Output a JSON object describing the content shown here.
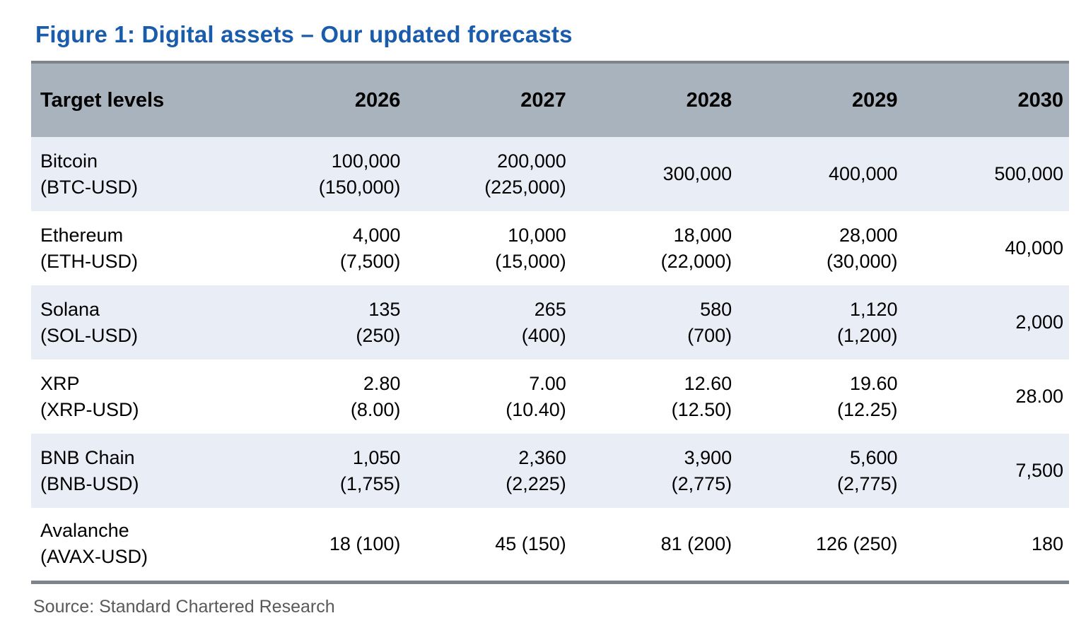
{
  "figure": {
    "title": "Figure 1: Digital assets – Our updated forecasts",
    "source": "Source: Standard Chartered Research"
  },
  "table": {
    "header": [
      "Target levels",
      "2026",
      "2027",
      "2028",
      "2029",
      "2030"
    ],
    "rows": [
      {
        "name": "Bitcoin",
        "ticker": "(BTC-USD)",
        "cells": [
          {
            "main": "100,000",
            "secondary": "(150,000)"
          },
          {
            "main": "200,000",
            "secondary": "(225,000)"
          },
          {
            "main": "300,000",
            "secondary": ""
          },
          {
            "main": "400,000",
            "secondary": ""
          },
          {
            "main": "500,000",
            "secondary": ""
          }
        ]
      },
      {
        "name": "Ethereum",
        "ticker": "(ETH-USD)",
        "cells": [
          {
            "main": "4,000",
            "secondary": "(7,500)"
          },
          {
            "main": "10,000",
            "secondary": "(15,000)"
          },
          {
            "main": "18,000",
            "secondary": "(22,000)"
          },
          {
            "main": "28,000",
            "secondary": "(30,000)"
          },
          {
            "main": "40,000",
            "secondary": ""
          }
        ]
      },
      {
        "name": "Solana",
        "ticker": "(SOL-USD)",
        "cells": [
          {
            "main": "135",
            "secondary": "(250)"
          },
          {
            "main": "265",
            "secondary": "(400)"
          },
          {
            "main": "580",
            "secondary": "(700)"
          },
          {
            "main": "1,120",
            "secondary": "(1,200)"
          },
          {
            "main": "2,000",
            "secondary": ""
          }
        ]
      },
      {
        "name": "XRP",
        "ticker": "(XRP-USD)",
        "cells": [
          {
            "main": "2.80",
            "secondary": "(8.00)"
          },
          {
            "main": "7.00",
            "secondary": "(10.40)"
          },
          {
            "main": "12.60",
            "secondary": "(12.50)"
          },
          {
            "main": "19.60",
            "secondary": "(12.25)"
          },
          {
            "main": "28.00",
            "secondary": ""
          }
        ]
      },
      {
        "name": "BNB Chain",
        "ticker": "(BNB-USD)",
        "cells": [
          {
            "main": "1,050",
            "secondary": "(1,755)"
          },
          {
            "main": "2,360",
            "secondary": "(2,225)"
          },
          {
            "main": "3,900",
            "secondary": "(2,775)"
          },
          {
            "main": "5,600",
            "secondary": "(2,775)"
          },
          {
            "main": "7,500",
            "secondary": ""
          }
        ]
      },
      {
        "name": "Avalanche",
        "ticker": "(AVAX-USD)",
        "cells": [
          {
            "main": "18 (100)",
            "secondary": ""
          },
          {
            "main": "45 (150)",
            "secondary": ""
          },
          {
            "main": "81 (200)",
            "secondary": ""
          },
          {
            "main": "126 (250)",
            "secondary": ""
          },
          {
            "main": "180",
            "secondary": ""
          }
        ]
      }
    ]
  },
  "colors": {
    "title_blue": "#1a5cab",
    "header_bg": "#a9b3bd",
    "row_alt_bg": "#e9edf6",
    "border_dark": "#7d848c",
    "source_gray": "#595959"
  }
}
